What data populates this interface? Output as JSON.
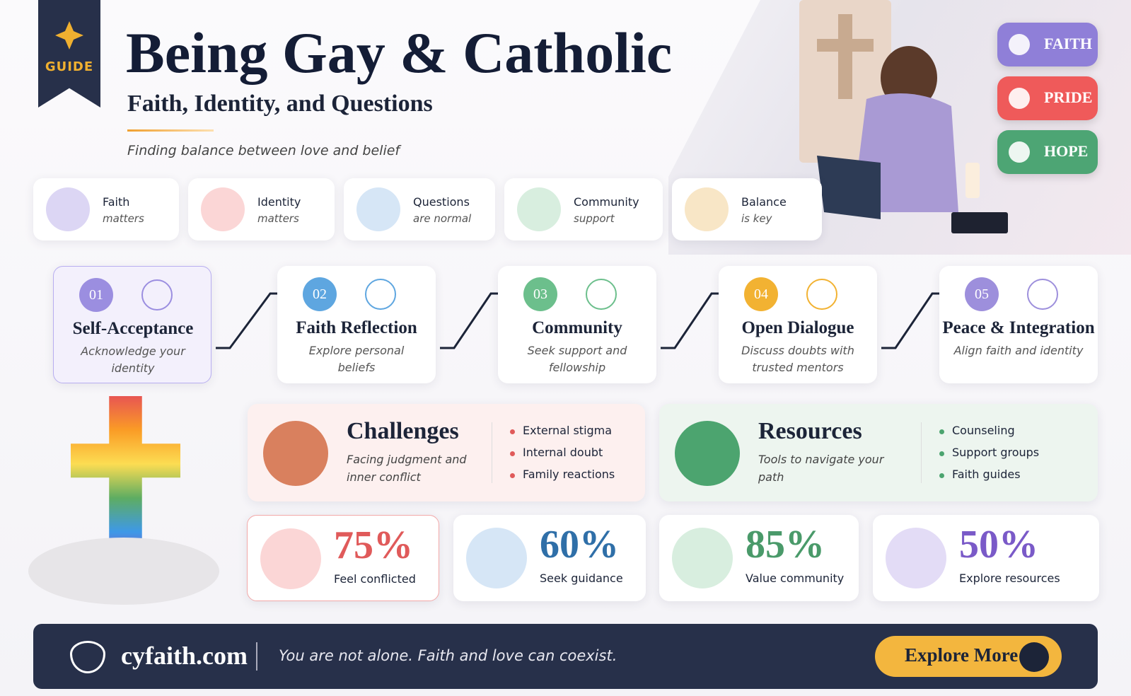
{
  "header": {
    "badge": "GUIDE",
    "title": "Being Gay & Catholic",
    "subtitle": "Faith, Identity, and Questions",
    "tagline": "Finding balance between love and belief"
  },
  "tags": [
    "FAITH",
    "PRIDE",
    "HOPE"
  ],
  "pillars": [
    {
      "title": "Faith",
      "subtitle": "matters"
    },
    {
      "title": "Identity",
      "subtitle": "matters"
    },
    {
      "title": "Questions",
      "subtitle": "are normal"
    },
    {
      "title": "Community",
      "subtitle": "support"
    },
    {
      "title": "Balance",
      "subtitle": "is key"
    }
  ],
  "steps": [
    {
      "number": "01",
      "title": "Self-Acceptance",
      "description": "Acknowledge your identity"
    },
    {
      "number": "02",
      "title": "Faith Reflection",
      "description": "Explore personal beliefs"
    },
    {
      "number": "03",
      "title": "Community",
      "description": "Seek support and fellowship"
    },
    {
      "number": "04",
      "title": "Open Dialogue",
      "description": "Discuss doubts with trusted mentors"
    },
    {
      "number": "05",
      "title": "Peace & Integration",
      "description": "Align faith and identity"
    }
  ],
  "panels": [
    {
      "title": "Challenges",
      "subtitle": "Facing judgment and inner conflict",
      "items": [
        "External stigma",
        "Internal doubt",
        "Family reactions"
      ]
    },
    {
      "title": "Resources",
      "subtitle": "Tools to navigate your path",
      "items": [
        "Counseling",
        "Support groups",
        "Faith guides"
      ]
    }
  ],
  "stats": [
    {
      "value": "75%",
      "label": "Feel conflicted"
    },
    {
      "value": "60%",
      "label": "Seek guidance"
    },
    {
      "value": "85%",
      "label": "Value community"
    },
    {
      "value": "50%",
      "label": "Explore resources"
    }
  ],
  "footer": {
    "site": "cyfaith.com",
    "message": "You are not alone. Faith and love can coexist.",
    "button": "Explore More"
  }
}
